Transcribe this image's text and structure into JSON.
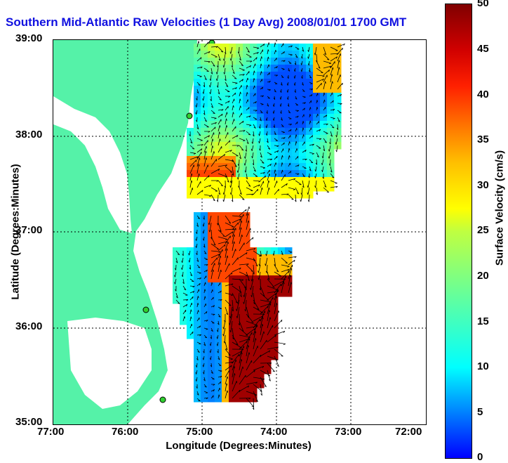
{
  "title": "Southern Mid-Atlantic Raw Velocities (1 Day Avg) 2008/01/01 1700 GMT",
  "xlabel": "Longitude (Degrees:Minutes)",
  "ylabel": "Latitude (Degrees:Minutes)",
  "x_ticks": [
    "77:00",
    "76:00",
    "75:00",
    "74:00",
    "73:00",
    "72:00"
  ],
  "y_ticks": [
    "39:00",
    "38:00",
    "37:00",
    "36:00",
    "35:00"
  ],
  "colorbar": {
    "label": "Surface Velocity (cm/s)",
    "ticks": [
      "50",
      "45",
      "40",
      "35",
      "30",
      "25",
      "20",
      "15",
      "10",
      "5",
      "0"
    ],
    "range": [
      0,
      50
    ]
  },
  "colors": {
    "land": "#55f2a8",
    "title": "#1010e0",
    "water": "#ffffff"
  },
  "map_extent": {
    "lon": [
      -77,
      -72
    ],
    "lat": [
      35,
      39
    ]
  }
}
